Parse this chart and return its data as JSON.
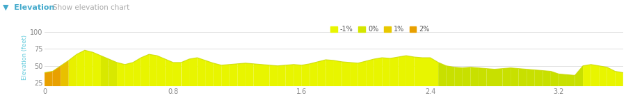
{
  "title": "Elevation",
  "subtitle": "Show elevation chart",
  "ylabel": "Elevation (feet)",
  "xlabel_ticks": [
    0,
    0.8,
    1.6,
    2.4,
    3.2
  ],
  "ylim": [
    20,
    105
  ],
  "xlim": [
    0,
    3.6
  ],
  "yticks": [
    25,
    50,
    75,
    100
  ],
  "background_color": "#ffffff",
  "grid_color": "#e0e0e0",
  "legend_labels": [
    "-1%",
    "0%",
    "1%",
    "2%"
  ],
  "legend_colors": [
    "#e8f500",
    "#d4e600",
    "#e8c800",
    "#e8a000"
  ],
  "elevation_x": [
    0.0,
    0.05,
    0.1,
    0.15,
    0.2,
    0.25,
    0.3,
    0.35,
    0.4,
    0.45,
    0.5,
    0.55,
    0.6,
    0.65,
    0.7,
    0.75,
    0.8,
    0.85,
    0.9,
    0.95,
    1.0,
    1.05,
    1.1,
    1.15,
    1.2,
    1.25,
    1.3,
    1.35,
    1.4,
    1.45,
    1.5,
    1.55,
    1.6,
    1.65,
    1.7,
    1.75,
    1.8,
    1.85,
    1.9,
    1.95,
    2.0,
    2.05,
    2.1,
    2.15,
    2.2,
    2.25,
    2.3,
    2.35,
    2.4,
    2.45,
    2.5,
    2.55,
    2.6,
    2.65,
    2.7,
    2.75,
    2.8,
    2.85,
    2.9,
    2.95,
    3.0,
    3.05,
    3.1,
    3.15,
    3.2,
    3.25,
    3.3,
    3.35,
    3.4,
    3.45,
    3.5,
    3.55,
    3.6
  ],
  "elevation_y": [
    40,
    42,
    50,
    58,
    67,
    73,
    70,
    65,
    60,
    55,
    52,
    55,
    62,
    67,
    65,
    60,
    55,
    55,
    60,
    62,
    58,
    54,
    51,
    52,
    53,
    54,
    53,
    52,
    51,
    50,
    51,
    52,
    51,
    53,
    56,
    59,
    58,
    56,
    55,
    54,
    57,
    60,
    62,
    61,
    63,
    65,
    63,
    62,
    62,
    55,
    50,
    48,
    47,
    48,
    47,
    46,
    45,
    46,
    47,
    46,
    45,
    44,
    43,
    42,
    38,
    37,
    36,
    50,
    52,
    50,
    48,
    42,
    40
  ],
  "segment_colors": [
    "#e8a000",
    "#e8a000",
    "#e8c000",
    "#e8f000",
    "#e8f500",
    "#e8f500",
    "#e8f500",
    "#d8e800",
    "#d8e800",
    "#e8f500",
    "#e8f500",
    "#e8f500",
    "#e8f500",
    "#e8f500",
    "#e8f500",
    "#e8f500",
    "#e8f500",
    "#e8f500",
    "#e8f500",
    "#e8f500",
    "#e8f500",
    "#e8f500",
    "#e8f500",
    "#e8f500",
    "#e8f500",
    "#e8f500",
    "#e8f500",
    "#e8f500",
    "#e8f500",
    "#e8f500",
    "#e8f500",
    "#e8f500",
    "#e8f500",
    "#e8f500",
    "#e8f500",
    "#e8f500",
    "#e8f500",
    "#e8f500",
    "#e8f500",
    "#e8f500",
    "#e8f500",
    "#e8f500",
    "#e8f500",
    "#e8f500",
    "#e8f500",
    "#e8f500",
    "#e8f500",
    "#e8f500",
    "#e8f500",
    "#c8e000",
    "#c8e000",
    "#c8e000",
    "#c8e000",
    "#c8e000",
    "#c8e000",
    "#c8e000",
    "#c8e000",
    "#c8e000",
    "#c8e000",
    "#c8e000",
    "#c8e000",
    "#c8e000",
    "#c8e000",
    "#c8e000",
    "#c8e000",
    "#c8e000",
    "#c8e000",
    "#e8f500",
    "#e8f500",
    "#e8f500",
    "#e8f500",
    "#e8f500",
    "#e8f500"
  ]
}
